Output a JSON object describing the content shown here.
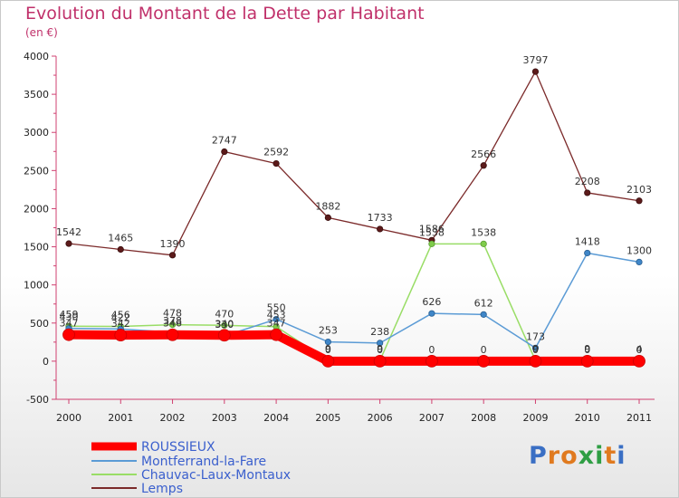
{
  "title": "Evolution du Montant de la Dette par Habitant",
  "subtitle": "(en €)",
  "logo": "Proxiti",
  "chart_data": {
    "type": "line",
    "title": "Evolution du Montant de la Dette par Habitant",
    "subtitle": "(en €)",
    "categories": [
      "2000",
      "2001",
      "2002",
      "2003",
      "2004",
      "2005",
      "2006",
      "2007",
      "2008",
      "2009",
      "2010",
      "2011"
    ],
    "ylim": [
      -500,
      4000
    ],
    "yticks": [
      -500,
      0,
      500,
      1000,
      1500,
      2000,
      2500,
      3000,
      3500,
      4000
    ],
    "grid": false,
    "legend_position": "bottom-left",
    "series": [
      {
        "name": "ROUSSIEUX",
        "color": "#ff0000",
        "values": [
          347,
          342,
          346,
          340,
          347,
          0,
          0,
          0,
          0,
          0,
          0,
          0
        ],
        "labels": [
          "347",
          "342",
          "346",
          "340",
          "347",
          "0",
          "0",
          "0",
          "0",
          "0",
          "0",
          "0"
        ]
      },
      {
        "name": "Montferrand-la-Fare",
        "color": "#5b9bd5",
        "values": [
          430,
          422,
          378,
          330,
          550,
          253,
          238,
          626,
          612,
          173,
          1418,
          1300
        ],
        "labels": [
          "430",
          "422",
          "378",
          "330",
          "550",
          "253",
          "238",
          "626",
          "612",
          "173",
          "1418",
          "1300"
        ]
      },
      {
        "name": "Chauvac-Laux-Montaux",
        "color": "#99dd66",
        "values": [
          459,
          456,
          478,
          470,
          453,
          9,
          9,
          1538,
          1538,
          9,
          9,
          4
        ],
        "labels": [
          "459",
          "456",
          "478",
          "470",
          "453",
          "9",
          "9",
          "1538",
          "1538",
          "9",
          "9",
          "4"
        ]
      },
      {
        "name": "Lemps",
        "color": "#7b2a2a",
        "values": [
          1542,
          1465,
          1390,
          2747,
          2592,
          1882,
          1733,
          1586,
          2566,
          3797,
          2208,
          2103
        ],
        "labels": [
          "1542",
          "1465",
          "1390",
          "2747",
          "2592",
          "1882",
          "1733",
          "1586",
          "2566",
          "3797",
          "2208",
          "2103"
        ]
      }
    ]
  }
}
